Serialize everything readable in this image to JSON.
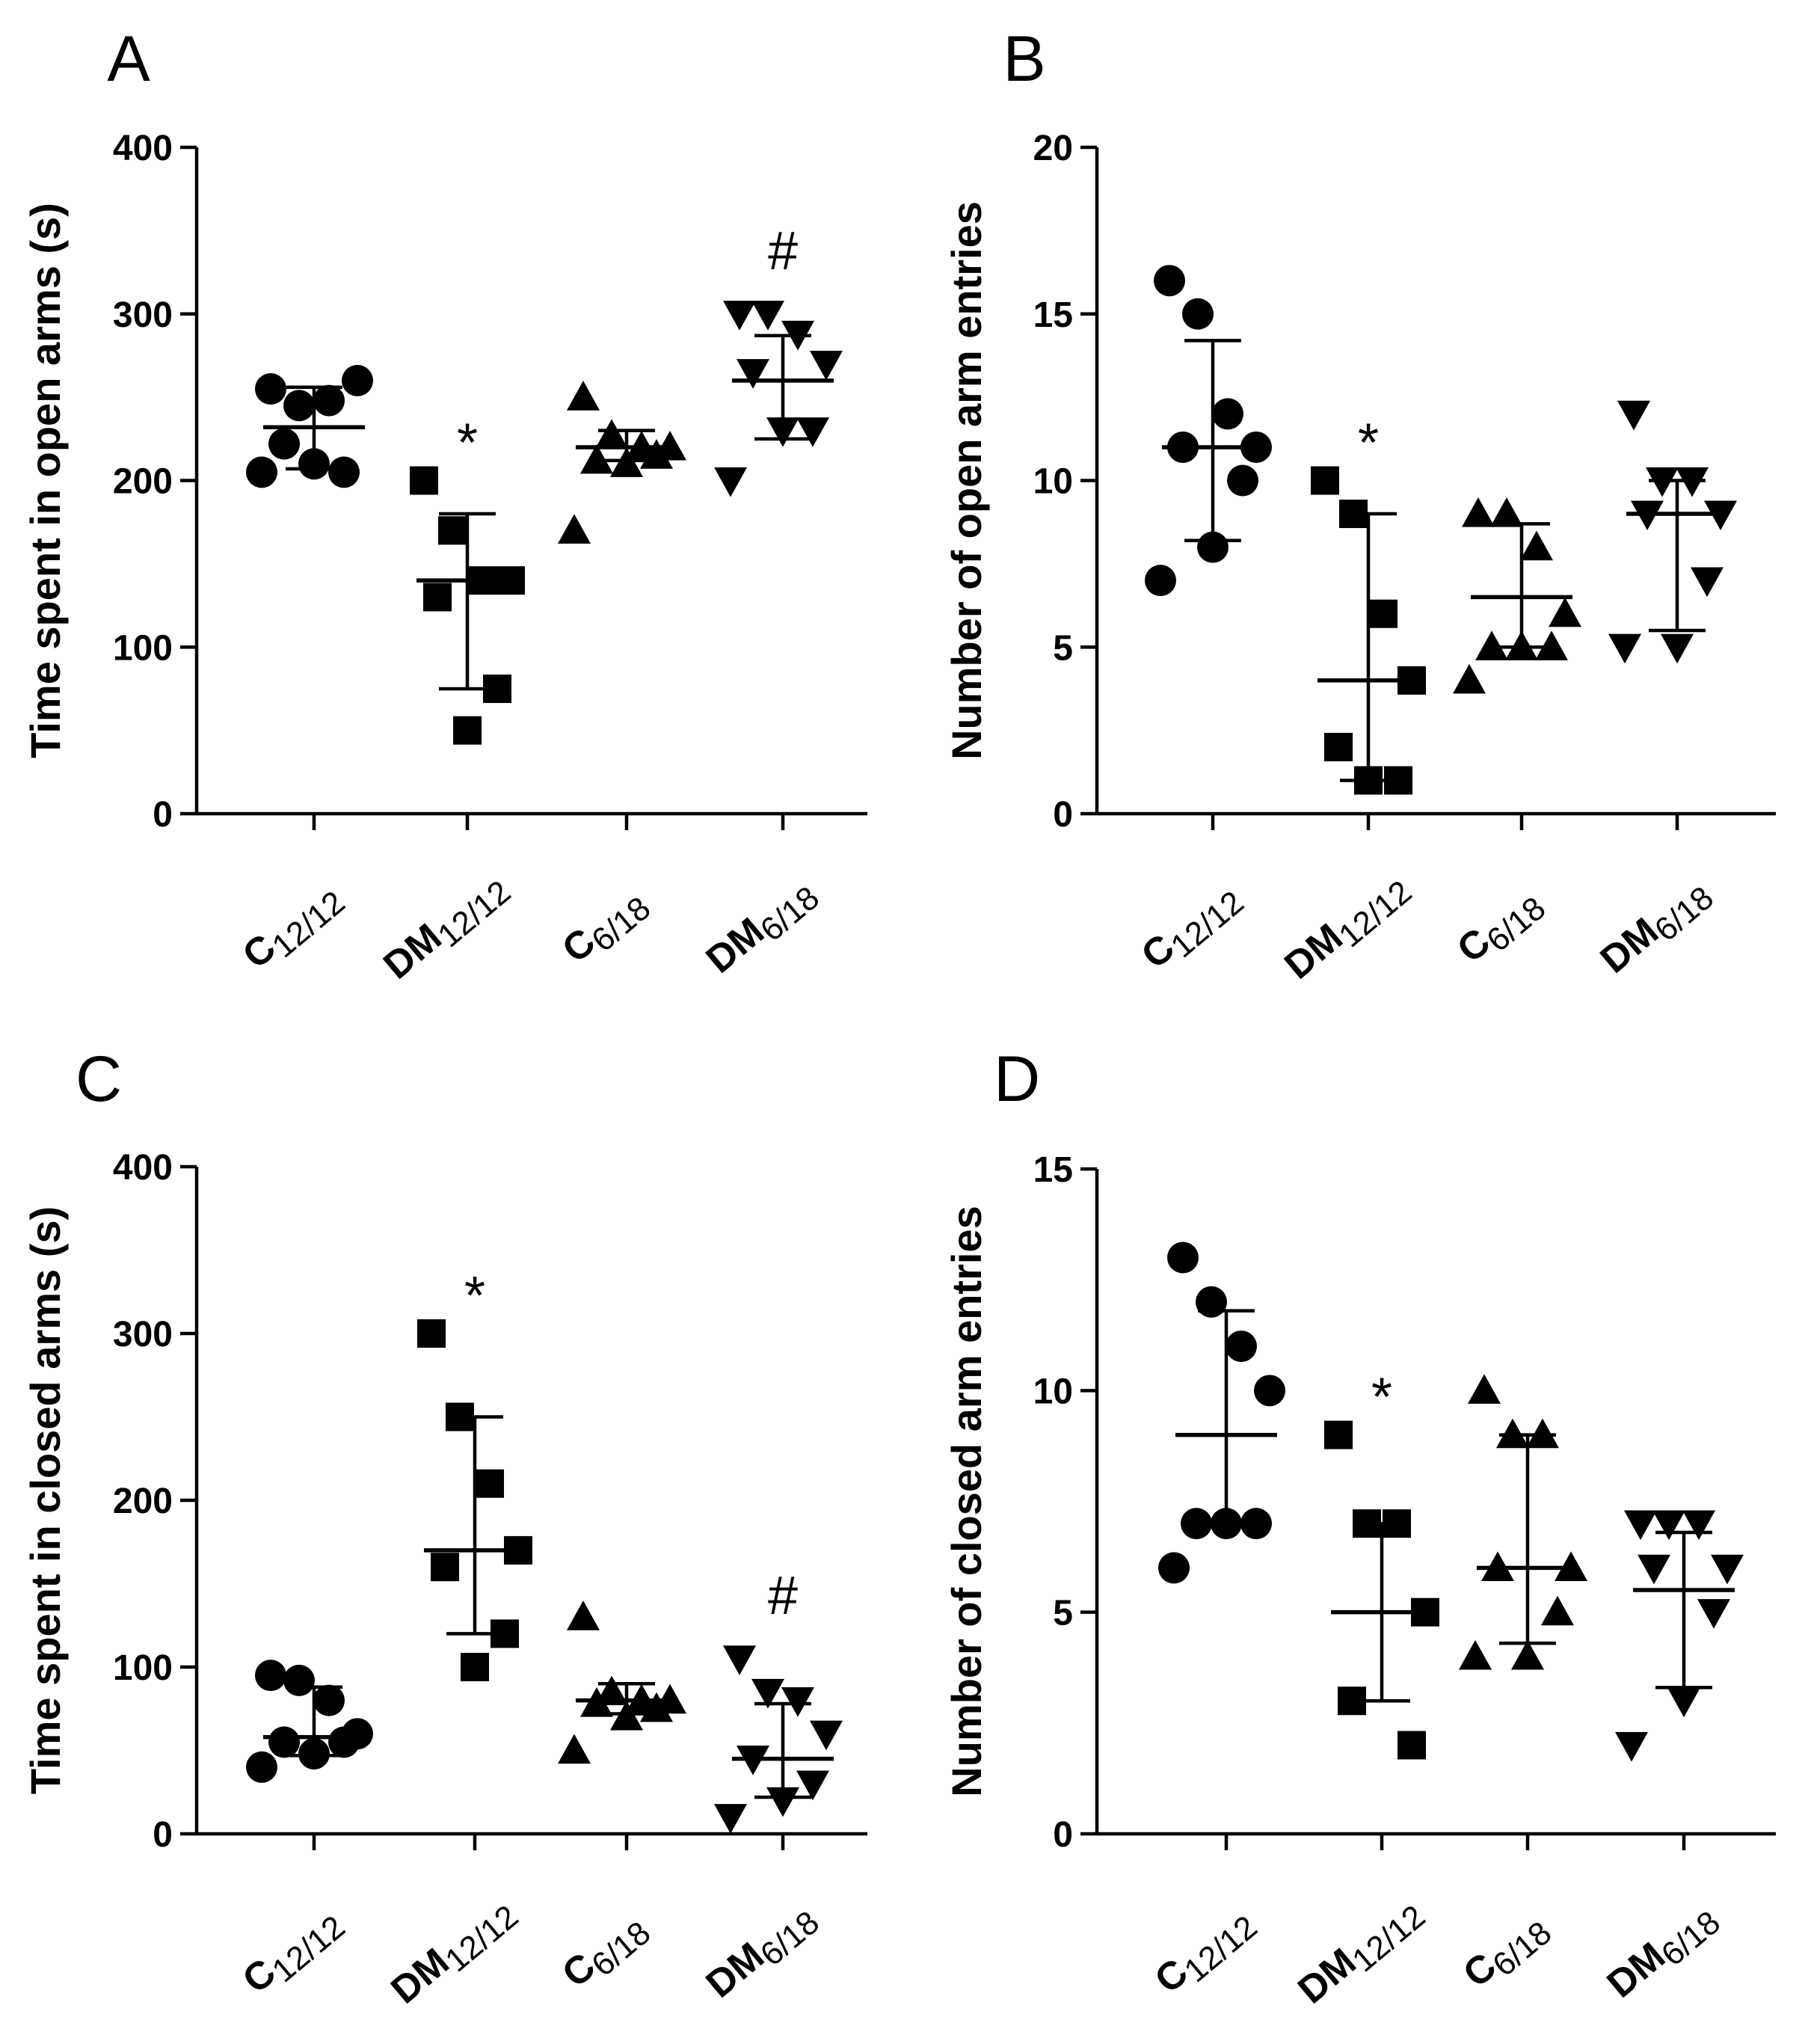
{
  "figure": {
    "panels": [
      "A",
      "B",
      "C",
      "D"
    ]
  },
  "chart_data": [
    {
      "panel": "A",
      "type": "scatter",
      "title": "",
      "xlabel": "",
      "ylabel": "Time spent in open arms (s)",
      "ylim": [
        0,
        400
      ],
      "yticks": [
        0,
        100,
        200,
        300,
        400
      ],
      "yticklabels": [
        "0",
        "100",
        "200",
        "300",
        "400"
      ],
      "categories": [
        {
          "main": "C",
          "sub": "12/12"
        },
        {
          "main": "DM",
          "sub": "12/12"
        },
        {
          "main": "C",
          "sub": "6/18"
        },
        {
          "main": "DM",
          "sub": "6/18"
        }
      ],
      "series": [
        {
          "name": "C12/12",
          "marker": "circle",
          "points": [
            255,
            245,
            248,
            260,
            222,
            205,
            210,
            205
          ],
          "mean": 232,
          "err_low": 207,
          "err_high": 256,
          "mark": ""
        },
        {
          "name": "DM12/12",
          "marker": "square",
          "points": [
            200,
            170,
            140,
            140,
            130,
            75,
            50
          ],
          "mean": 140,
          "err_low": 75,
          "err_high": 180,
          "mark": "*"
        },
        {
          "name": "C6/18",
          "marker": "triangle-up",
          "points": [
            250,
            227,
            220,
            220,
            212,
            215,
            210,
            170
          ],
          "mean": 220,
          "err_low": 212,
          "err_high": 230,
          "mark": ""
        },
        {
          "name": "DM6/18",
          "marker": "triangle-down",
          "points": [
            300,
            300,
            288,
            270,
            265,
            230,
            230,
            200
          ],
          "mean": 260,
          "err_low": 225,
          "err_high": 287,
          "mark": "#"
        }
      ]
    },
    {
      "panel": "B",
      "type": "scatter",
      "title": "",
      "xlabel": "",
      "ylabel": "Number of open arm entries",
      "ylim": [
        0,
        20
      ],
      "yticks": [
        0,
        5,
        10,
        15,
        20
      ],
      "yticklabels": [
        "0",
        "5",
        "10",
        "15",
        "20"
      ],
      "categories": [
        {
          "main": "C",
          "sub": "12/12"
        },
        {
          "main": "DM",
          "sub": "12/12"
        },
        {
          "main": "C",
          "sub": "6/18"
        },
        {
          "main": "DM",
          "sub": "6/18"
        }
      ],
      "series": [
        {
          "name": "C12/12",
          "marker": "circle",
          "points": [
            16,
            15,
            12,
            11,
            11,
            10,
            8,
            7
          ],
          "mean": 11,
          "err_low": 8.2,
          "err_high": 14.2,
          "mark": ""
        },
        {
          "name": "DM12/12",
          "marker": "square",
          "points": [
            10,
            9,
            6,
            4,
            2,
            1,
            1
          ],
          "mean": 4,
          "err_low": 1,
          "err_high": 9,
          "mark": "*"
        },
        {
          "name": "C6/18",
          "marker": "triangle-up",
          "points": [
            9,
            9,
            8,
            6,
            5,
            5,
            5,
            4
          ],
          "mean": 6.5,
          "err_low": 5,
          "err_high": 8.7,
          "mark": ""
        },
        {
          "name": "DM6/18",
          "marker": "triangle-down",
          "points": [
            12,
            10,
            10,
            9,
            9,
            7,
            5,
            5
          ],
          "mean": 9,
          "err_low": 5.5,
          "err_high": 10,
          "mark": ""
        }
      ]
    },
    {
      "panel": "C",
      "type": "scatter",
      "title": "",
      "xlabel": "",
      "ylabel": "Time spent in closed arms (s)",
      "ylim": [
        0,
        400
      ],
      "yticks": [
        0,
        100,
        200,
        300,
        400
      ],
      "yticklabels": [
        "0",
        "100",
        "200",
        "300",
        "400"
      ],
      "categories": [
        {
          "main": "C",
          "sub": "12/12"
        },
        {
          "main": "DM",
          "sub": "12/12"
        },
        {
          "main": "C",
          "sub": "6/18"
        },
        {
          "main": "DM",
          "sub": "6/18"
        }
      ],
      "series": [
        {
          "name": "C12/12",
          "marker": "circle",
          "points": [
            95,
            92,
            80,
            60,
            55,
            55,
            48,
            40
          ],
          "mean": 58,
          "err_low": 47,
          "err_high": 88,
          "mark": ""
        },
        {
          "name": "DM12/12",
          "marker": "square",
          "points": [
            300,
            250,
            210,
            170,
            160,
            120,
            100
          ],
          "mean": 170,
          "err_low": 120,
          "err_high": 250,
          "mark": "*"
        },
        {
          "name": "C6/18",
          "marker": "triangle-up",
          "points": [
            130,
            85,
            80,
            80,
            78,
            75,
            70,
            50
          ],
          "mean": 80,
          "err_low": 72,
          "err_high": 90,
          "mark": ""
        },
        {
          "name": "DM6/18",
          "marker": "triangle-down",
          "points": [
            105,
            85,
            80,
            60,
            45,
            30,
            20,
            10
          ],
          "mean": 45,
          "err_low": 22,
          "err_high": 78,
          "mark": "#"
        }
      ]
    },
    {
      "panel": "D",
      "type": "scatter",
      "title": "",
      "xlabel": "",
      "ylabel": "Number of closed arm entries",
      "ylim": [
        0,
        15
      ],
      "yticks": [
        0,
        5,
        10,
        15
      ],
      "yticklabels": [
        "0",
        "5",
        "10",
        "15"
      ],
      "categories": [
        {
          "main": "C",
          "sub": "12/12"
        },
        {
          "main": "DM",
          "sub": "12/12"
        },
        {
          "main": "C",
          "sub": "6/18"
        },
        {
          "main": "DM",
          "sub": "6/18"
        }
      ],
      "series": [
        {
          "name": "C12/12",
          "marker": "circle",
          "points": [
            13,
            12,
            11,
            10,
            7,
            7,
            7,
            6
          ],
          "mean": 9,
          "err_low": 7,
          "err_high": 11.8,
          "mark": ""
        },
        {
          "name": "DM12/12",
          "marker": "square",
          "points": [
            9,
            7,
            7,
            5,
            3,
            2
          ],
          "mean": 5,
          "err_low": 3,
          "err_high": 7,
          "mark": "*"
        },
        {
          "name": "C6/18",
          "marker": "triangle-up",
          "points": [
            10,
            9,
            9,
            6,
            6,
            5,
            4,
            4
          ],
          "mean": 6,
          "err_low": 4.3,
          "err_high": 9,
          "mark": ""
        },
        {
          "name": "DM6/18",
          "marker": "triangle-down",
          "points": [
            7,
            7,
            7,
            6,
            6,
            5,
            3,
            2
          ],
          "mean": 5.5,
          "err_low": 3.3,
          "err_high": 6.8,
          "mark": ""
        }
      ]
    }
  ]
}
